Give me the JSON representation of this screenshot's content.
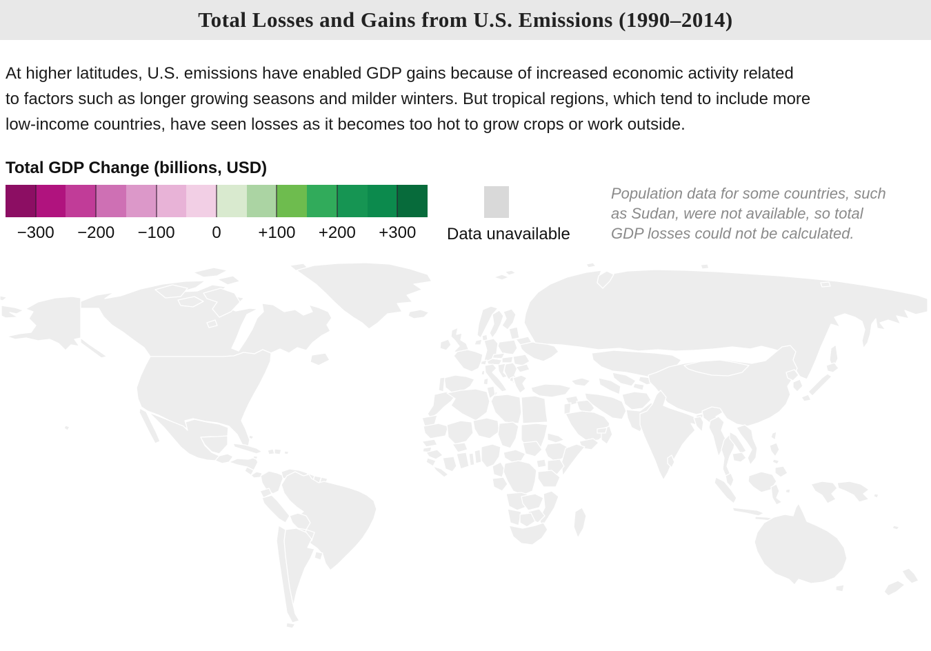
{
  "header": {
    "title": "Total Losses and Gains from U.S. Emissions (1990–2014)"
  },
  "intro": {
    "lines": [
      "At higher latitudes, U.S. emissions have enabled GDP gains because of increased economic activity related",
      "to factors such as longer growing seasons and milder winters. But tropical regions, which tend to include more",
      "low-income countries, have seen losses as it becomes too hot to grow crops or work outside."
    ]
  },
  "legend": {
    "title": "Total GDP Change (billions, USD)",
    "tick_labels": [
      "−300",
      "−200",
      "−100",
      "0",
      "+100",
      "+200",
      "+300"
    ],
    "bin_colors": [
      "#8C0E63",
      "#B0137E",
      "#C13C98",
      "#CE70B4",
      "#DC98C9",
      "#E8B3D7",
      "#F2CFE5",
      "#D9EACF",
      "#ABD4A3",
      "#6EBC4E",
      "#31AB5B",
      "#169553",
      "#0C8A4D",
      "#076B3B"
    ],
    "unavailable": {
      "label": "Data unavailable",
      "color": "#D9D9D9"
    }
  },
  "note": {
    "lines": [
      "Population data for some countries, such",
      "as Sudan, were not available, so total",
      "GDP losses could not be calculated."
    ]
  },
  "chart_data": {
    "type": "choropleth",
    "title": "Total GDP Change (billions, USD)",
    "units": "billions USD",
    "scale": {
      "domain": [
        -350,
        350
      ],
      "bin_size": 50,
      "tick_labels": [
        "−300",
        "−200",
        "−100",
        "0",
        "+100",
        "+200",
        "+300"
      ],
      "bin_colors": [
        "#8C0E63",
        "#B0137E",
        "#C13C98",
        "#CE70B4",
        "#DC98C9",
        "#E8B3D7",
        "#F2CFE5",
        "#D9EACF",
        "#ABD4A3",
        "#6EBC4E",
        "#31AB5B",
        "#169553",
        "#0C8A4D",
        "#076B3B"
      ],
      "unavailable_color": "#D9D9D9"
    },
    "countries": {
      "russia": {
        "name": "Russia",
        "fill": "#176C39"
      },
      "chukotka-west": {
        "name": "Russia (far east wrap)",
        "fill": "#176C39"
      },
      "novaya-zemlya": {
        "name": "Russia (Novaya Zemlya)",
        "fill": "#176C39"
      },
      "sakhalin": {
        "name": "Russia (Sakhalin)",
        "fill": "#176C39"
      },
      "arctic-ru": {
        "name": "Russia (Arctic islands)",
        "fill": "#176C39"
      },
      "kaliningrad": {
        "name": "Russia (Kaliningrad)",
        "fill": "#176C39"
      },
      "germany": {
        "name": "Germany",
        "fill": "#0B6132"
      },
      "canada": {
        "name": "Canada",
        "fill": "#1FA05A"
      },
      "alaska": {
        "name": "United States (Alaska)",
        "fill": "#3FAE66"
      },
      "usa": {
        "name": "United States",
        "fill": "#50B573"
      },
      "hawaii": {
        "name": "United States (Hawaii)",
        "fill": "#3FAE66"
      },
      "greenland": {
        "name": "Greenland",
        "fill": "#D9EACF"
      },
      "iceland": {
        "name": "Iceland",
        "fill": "#C9E3BE"
      },
      "uk": {
        "name": "United Kingdom",
        "fill": "#5BB54D"
      },
      "ireland": {
        "name": "Ireland",
        "fill": "#A9D3A1"
      },
      "france": {
        "name": "France",
        "fill": "#72BE53"
      },
      "norway": {
        "name": "Norway",
        "fill": "#AFD7A6"
      },
      "sweden": {
        "name": "Sweden",
        "fill": "#C3DFB7"
      },
      "finland": {
        "name": "Finland",
        "fill": "#CEE5C4"
      },
      "svalbard": {
        "name": "Svalbard",
        "fill": "#C3DFB7"
      },
      "denmark": {
        "name": "Denmark",
        "fill": "#D9D9D9"
      },
      "benelux": {
        "name": "Netherlands / Belgium",
        "fill": "#C9E3BE"
      },
      "poland": {
        "name": "Poland",
        "fill": "#AFD6A5"
      },
      "czechia": {
        "name": "Czechia",
        "fill": "#C9E3BE"
      },
      "austria": {
        "name": "Austria",
        "fill": "#D5E8CB"
      },
      "switzerland": {
        "name": "Switzerland",
        "fill": "#A9D3A1"
      },
      "italy": {
        "name": "Italy",
        "fill": "#D5E8CB"
      },
      "spain": {
        "name": "Spain",
        "fill": "#F0C8E2"
      },
      "portugal": {
        "name": "Portugal",
        "fill": "#FFFFFF"
      },
      "baltics": {
        "name": "Baltic states",
        "fill": "#D9D9D9"
      },
      "belarus": {
        "name": "Belarus",
        "fill": "#D3E7C9"
      },
      "ukraine": {
        "name": "Ukraine",
        "fill": "#D8EACE"
      },
      "moldova": {
        "name": "Moldova",
        "fill": "#D9D9D9"
      },
      "hungary": {
        "name": "Hungary",
        "fill": "#D9D9D9"
      },
      "croatia": {
        "name": "Slovenia / Croatia",
        "fill": "#D5E8CB"
      },
      "balkans": {
        "name": "Western Balkans",
        "fill": "#D9D9D9"
      },
      "romania": {
        "name": "Romania",
        "fill": "#CBE4C0"
      },
      "bulgaria": {
        "name": "Bulgaria",
        "fill": "#D8EACE"
      },
      "greece": {
        "name": "Greece",
        "fill": "#F0A8D4"
      },
      "albania": {
        "name": "Albania",
        "fill": "#D9D9D9"
      },
      "turkey": {
        "name": "Turkey",
        "fill": "#F3CFE5"
      },
      "caucasus": {
        "name": "Caucasus states",
        "fill": "#D9D9D9"
      },
      "syria": {
        "name": "Syria",
        "fill": "#D9D9D9"
      },
      "iraq": {
        "name": "Iraq",
        "fill": "#F0C8E2"
      },
      "jordan-israel": {
        "name": "Jordan / Israel",
        "fill": "#F0C8E2"
      },
      "saudi-arabia": {
        "name": "Saudi Arabia",
        "fill": "#D075BC"
      },
      "yemen": {
        "name": "Yemen",
        "fill": "#EFC0DE"
      },
      "oman": {
        "name": "Oman",
        "fill": "#EFC0DE"
      },
      "uae": {
        "name": "United Arab Emirates",
        "fill": "#DD98C9"
      },
      "iran": {
        "name": "Iran",
        "fill": "#F2CCE3"
      },
      "afghanistan": {
        "name": "Afghanistan",
        "fill": "#D9D9D9"
      },
      "pakistan": {
        "name": "Pakistan",
        "fill": "#EFC9E2"
      },
      "turkmenistan": {
        "name": "Turkmenistan",
        "fill": "#F2CCE3"
      },
      "uzbekistan": {
        "name": "Uzbekistan",
        "fill": "#EFC7E1"
      },
      "tajikistan": {
        "name": "Tajikistan",
        "fill": "#D9D9D9"
      },
      "kyrgyzstan": {
        "name": "Kyrgyzstan",
        "fill": "#C9E3BE"
      },
      "kazakhstan": {
        "name": "Kazakhstan",
        "fill": "#DAEBD1"
      },
      "china": {
        "name": "China",
        "fill": "#F0D3E7"
      },
      "mongolia": {
        "name": "Mongolia",
        "fill": "#F0D3E7"
      },
      "taiwan": {
        "name": "Taiwan",
        "fill": "#EFC9E2"
      },
      "north-korea": {
        "name": "North Korea",
        "fill": "#D9D9D9"
      },
      "south-korea": {
        "name": "South Korea",
        "fill": "#B9DBAD"
      },
      "japan": {
        "name": "Japan",
        "fill": "#D5E8CB"
      },
      "india": {
        "name": "India",
        "fill": "#B01F80"
      },
      "bangladesh": {
        "name": "Bangladesh",
        "fill": "#BA2185"
      },
      "nepal": {
        "name": "Nepal",
        "fill": "#D9D9D9"
      },
      "bhutan": {
        "name": "Bhutan",
        "fill": "#D9D9D9"
      },
      "sri-lanka": {
        "name": "Sri Lanka",
        "fill": "#E2A7D2"
      },
      "myanmar": {
        "name": "Myanmar",
        "fill": "#F0CBE3"
      },
      "thailand": {
        "name": "Thailand",
        "fill": "#E0A5D1"
      },
      "laos": {
        "name": "Laos",
        "fill": "#EFC9E2"
      },
      "cambodia": {
        "name": "Cambodia",
        "fill": "#D9D9D9"
      },
      "vietnam": {
        "name": "Vietnam",
        "fill": "#EFC9E2"
      },
      "malaysia": {
        "name": "Malaysia",
        "fill": "#D98FC6"
      },
      "indonesia": {
        "name": "Indonesia",
        "fill": "#D98FC6"
      },
      "java": {
        "name": "Indonesia (Java)",
        "fill": "#C760A8"
      },
      "sulawesi": {
        "name": "Indonesia (Sulawesi)",
        "fill": "#C760A8"
      },
      "west-papua": {
        "name": "Indonesia (Papua)",
        "fill": "#C760A8"
      },
      "png": {
        "name": "Papua New Guinea",
        "fill": "#DC95C8"
      },
      "solomon": {
        "name": "Solomon Islands",
        "fill": "#EFC0DE"
      },
      "philippines": {
        "name": "Philippines",
        "fill": "#EFC9E2"
      },
      "australia": {
        "name": "Australia",
        "fill": "#F0C6E0"
      },
      "new-zealand": {
        "name": "New Zealand",
        "fill": "#B5D9A8"
      },
      "new-caledonia": {
        "name": "New Caledonia",
        "fill": "#EFC0DE"
      },
      "morocco": {
        "name": "Morocco",
        "fill": "#D9D9D9"
      },
      "western-sahara": {
        "name": "Western Sahara",
        "fill": "#D9D9D9"
      },
      "algeria": {
        "name": "Algeria",
        "fill": "#F3CDE3"
      },
      "tunisia": {
        "name": "Tunisia",
        "fill": "#F3CDE3"
      },
      "libya": {
        "name": "Libya",
        "fill": "#D9D9D9"
      },
      "egypt": {
        "name": "Egypt",
        "fill": "#F2C9E2"
      },
      "mauritania": {
        "name": "Mauritania",
        "fill": "#F3CDE3"
      },
      "mali": {
        "name": "Mali",
        "fill": "#F3CDE3"
      },
      "niger": {
        "name": "Niger",
        "fill": "#F3CDE3"
      },
      "chad": {
        "name": "Chad",
        "fill": "#F3CDE3"
      },
      "sudan": {
        "name": "Sudan",
        "fill": "#D9D9D9"
      },
      "south-sudan": {
        "name": "South Sudan",
        "fill": "#D9D9D9"
      },
      "eritrea": {
        "name": "Eritrea",
        "fill": "#D9D9D9"
      },
      "ethiopia": {
        "name": "Ethiopia",
        "fill": "#F3CDE3"
      },
      "somalia": {
        "name": "Somalia",
        "fill": "#D9D9D9"
      },
      "senegal": {
        "name": "Senegal",
        "fill": "#F0C6E0"
      },
      "guinea-bissau": {
        "name": "Guinea-Bissau",
        "fill": "#D9D9D9"
      },
      "guinea": {
        "name": "Guinea",
        "fill": "#F3CDE3"
      },
      "sierra-leone": {
        "name": "Sierra Leone",
        "fill": "#D9D9D9"
      },
      "liberia": {
        "name": "Liberia",
        "fill": "#D9D9D9"
      },
      "ivory-coast": {
        "name": "Côte d'Ivoire",
        "fill": "#F3CDE3"
      },
      "burkina-faso": {
        "name": "Burkina Faso",
        "fill": "#F3CDE3"
      },
      "ghana": {
        "name": "Ghana",
        "fill": "#F3CDE3"
      },
      "togo": {
        "name": "Togo",
        "fill": "#D9D9D9"
      },
      "benin": {
        "name": "Benin",
        "fill": "#F3CDE3"
      },
      "nigeria": {
        "name": "Nigeria",
        "fill": "#E2A3D2"
      },
      "cameroon": {
        "name": "Cameroon",
        "fill": "#F0C6E0"
      },
      "gabon-congo": {
        "name": "Gabon / Congo",
        "fill": "#F3CDE3"
      },
      "car": {
        "name": "Central African Republic",
        "fill": "#F3CDE3"
      },
      "drc": {
        "name": "DR Congo",
        "fill": "#F3CDE3"
      },
      "uganda": {
        "name": "Uganda",
        "fill": "#F3CDE3"
      },
      "kenya": {
        "name": "Kenya",
        "fill": "#F3CDE3"
      },
      "tanzania": {
        "name": "Tanzania",
        "fill": "#F3CDE3"
      },
      "angola": {
        "name": "Angola",
        "fill": "#F3CDE3"
      },
      "zambia": {
        "name": "Zambia",
        "fill": "#F3CDE3"
      },
      "mozambique": {
        "name": "Mozambique",
        "fill": "#F3CDE3"
      },
      "zimbabwe": {
        "name": "Zimbabwe",
        "fill": "#F3CDE3"
      },
      "namibia": {
        "name": "Namibia",
        "fill": "#F3CDE3"
      },
      "botswana": {
        "name": "Botswana",
        "fill": "#F3CDE3"
      },
      "south-africa": {
        "name": "South Africa",
        "fill": "#F2C9E2"
      },
      "madagascar": {
        "name": "Madagascar",
        "fill": "#F0C6E0"
      },
      "mexico": {
        "name": "Mexico",
        "fill": "#EAB8DA"
      },
      "guatemala": {
        "name": "Guatemala / Belize",
        "fill": "#F0C6E0"
      },
      "honduras-nicaragua": {
        "name": "Honduras / Nicaragua",
        "fill": "#EFC0DE"
      },
      "costa-rica": {
        "name": "Costa Rica",
        "fill": "#F3CDE3"
      },
      "panama": {
        "name": "Panama",
        "fill": "#D9D9D9"
      },
      "cuba": {
        "name": "Cuba",
        "fill": "#D9D9D9"
      },
      "bahamas": {
        "name": "Bahamas",
        "fill": "#D9D9D9"
      },
      "haiti": {
        "name": "Haiti",
        "fill": "#D9D9D9"
      },
      "dominican-republic": {
        "name": "Dominican Republic",
        "fill": "#EFC0DE"
      },
      "jamaica": {
        "name": "Jamaica",
        "fill": "#D9D9D9"
      },
      "puerto-rico": {
        "name": "Puerto Rico",
        "fill": "#EFC0DE"
      },
      "colombia": {
        "name": "Colombia",
        "fill": "#F2C9E2"
      },
      "venezuela": {
        "name": "Venezuela",
        "fill": "#D581BE"
      },
      "guyana": {
        "name": "Guyana",
        "fill": "#F0C6E0"
      },
      "suriname": {
        "name": "Suriname",
        "fill": "#E8B3D7"
      },
      "french-guiana": {
        "name": "French Guiana",
        "fill": "#4DB348"
      },
      "ecuador": {
        "name": "Ecuador",
        "fill": "#F0C6E0"
      },
      "peru": {
        "name": "Peru",
        "fill": "#F3CDE3"
      },
      "brazil": {
        "name": "Brazil",
        "fill": "#8E2168"
      },
      "bolivia": {
        "name": "Bolivia",
        "fill": "#F2C9E2"
      },
      "paraguay": {
        "name": "Paraguay",
        "fill": "#F0C6E0"
      },
      "uruguay": {
        "name": "Uruguay",
        "fill": "#F0C6E0"
      },
      "chile": {
        "name": "Chile",
        "fill": "#CBE4BE"
      },
      "argentina": {
        "name": "Argentina",
        "fill": "#F2CCE3"
      }
    }
  }
}
